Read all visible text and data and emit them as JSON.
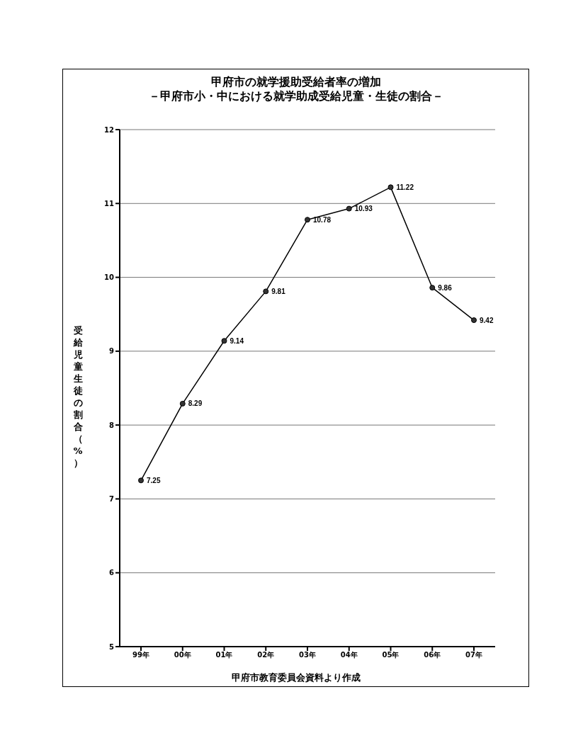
{
  "chart_data": {
    "type": "line",
    "title": "甲府市の就学援助受給者率の増加",
    "subtitle": "－甲府市小・中における就学助成受給児童・生徒の割合－",
    "xlabel": "甲府市教育委員会資料より作成",
    "ylabel": "受給児童生徒の割合（%）",
    "categories": [
      "99年",
      "00年",
      "01年",
      "02年",
      "03年",
      "04年",
      "05年",
      "06年",
      "07年"
    ],
    "series": [
      {
        "color": "#000000",
        "values": [
          7.25,
          8.29,
          9.14,
          9.81,
          10.78,
          10.93,
          11.22,
          9.86,
          9.42
        ]
      }
    ],
    "ylim": [
      5,
      12
    ],
    "yticks": [
      5,
      6,
      7,
      8,
      9,
      10,
      11,
      12
    ],
    "grid": "y",
    "marker": "circle",
    "line_style": "solid",
    "data_labels": true
  }
}
